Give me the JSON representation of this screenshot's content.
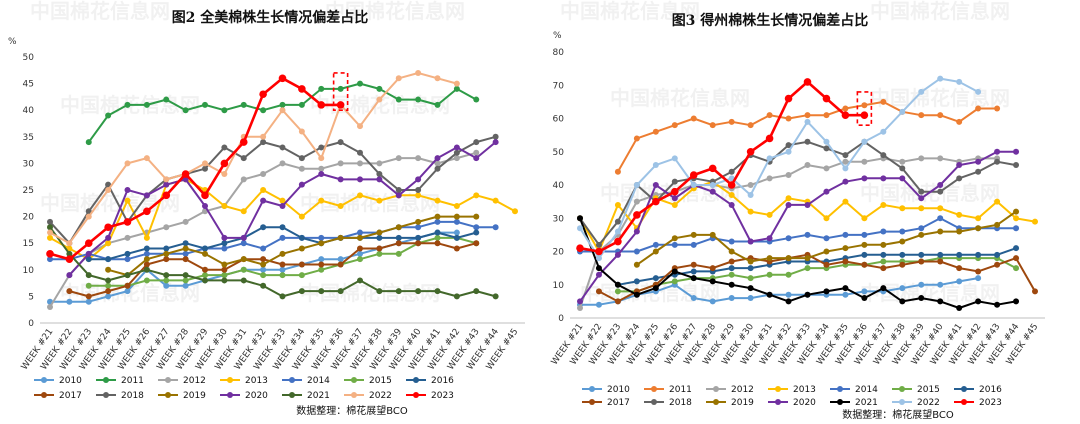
{
  "chart_data": [
    {
      "type": "line",
      "title": "图2 全美棉株生长情况偏差占比",
      "ylabel": "%",
      "ylim": [
        0,
        50
      ],
      "yticks": [
        0,
        5,
        10,
        15,
        20,
        25,
        30,
        35,
        40,
        45,
        50
      ],
      "categories": [
        "WEEK #21",
        "WEEK #22",
        "WEEK #23",
        "WEEK #24",
        "WEEK #25",
        "WEEK #26",
        "WEEK #27",
        "WEEK #28",
        "WEEK #29",
        "WEEK #30",
        "WEEK #31",
        "WEEK #32",
        "WEEK #33",
        "WEEK #34",
        "WEEK #35",
        "WEEK #36",
        "WEEK #37",
        "WEEK #38",
        "WEEK #39",
        "WEEK #40",
        "WEEK #41",
        "WEEK #42",
        "WEEK #43",
        "WEEK #44",
        "WEEK #45"
      ],
      "highlight": {
        "week": "WEEK #36",
        "range": [
          40,
          47
        ]
      },
      "source": "数据整理：棉花展望BCO",
      "grid": false,
      "legend_position": "bottom",
      "series": [
        {
          "name": "2010",
          "color": "#5b9bd5",
          "values": [
            4,
            4,
            4,
            5,
            6,
            10,
            7,
            7,
            8,
            9,
            10,
            10,
            10,
            11,
            12,
            12,
            13,
            14,
            15,
            16,
            17,
            17,
            null,
            null,
            null
          ]
        },
        {
          "name": "2011",
          "color": "#2e9b47",
          "values": [
            null,
            null,
            34,
            39,
            41,
            41,
            42,
            40,
            41,
            40,
            41,
            40,
            41,
            41,
            44,
            44,
            45,
            44,
            42,
            42,
            41,
            44,
            42,
            null,
            null
          ]
        },
        {
          "name": "2012",
          "color": "#a5a5a5",
          "values": [
            3,
            9,
            13,
            15,
            16,
            17,
            18,
            19,
            21,
            22,
            27,
            28,
            30,
            29,
            29,
            30,
            30,
            30,
            31,
            31,
            30,
            31,
            32,
            null,
            null
          ]
        },
        {
          "name": "2013",
          "color": "#ffc000",
          "values": [
            16,
            14,
            12,
            15,
            23,
            16,
            26,
            27,
            25,
            22,
            21,
            25,
            23,
            20,
            23,
            22,
            24,
            23,
            24,
            24,
            23,
            22,
            24,
            23,
            21
          ]
        },
        {
          "name": "2014",
          "color": "#4472c4",
          "values": [
            12,
            12,
            13,
            12,
            12,
            13,
            13,
            13,
            14,
            14,
            15,
            14,
            16,
            16,
            16,
            16,
            17,
            17,
            18,
            18,
            19,
            19,
            18,
            18,
            null
          ]
        },
        {
          "name": "2015",
          "color": "#70ad47",
          "values": [
            null,
            null,
            7,
            7,
            7,
            8,
            8,
            8,
            9,
            9,
            10,
            9,
            9,
            9,
            10,
            11,
            12,
            13,
            13,
            15,
            16,
            16,
            15,
            null,
            null
          ]
        },
        {
          "name": "2016",
          "color": "#255e91",
          "values": [
            null,
            null,
            12,
            12,
            13,
            14,
            14,
            15,
            14,
            15,
            16,
            18,
            18,
            16,
            15,
            16,
            16,
            16,
            16,
            16,
            17,
            16,
            17,
            null,
            null
          ]
        },
        {
          "name": "2017",
          "color": "#9e480e",
          "values": [
            null,
            6,
            5,
            6,
            7,
            11,
            12,
            12,
            10,
            10,
            12,
            12,
            11,
            11,
            11,
            11,
            14,
            14,
            15,
            15,
            15,
            14,
            15,
            null,
            null
          ]
        },
        {
          "name": "2018",
          "color": "#636363",
          "values": [
            19,
            15,
            21,
            26,
            19,
            24,
            27,
            28,
            29,
            33,
            31,
            34,
            33,
            31,
            33,
            34,
            32,
            28,
            25,
            25,
            29,
            32,
            34,
            35,
            null
          ]
        },
        {
          "name": "2019",
          "color": "#997300",
          "values": [
            null,
            null,
            null,
            10,
            9,
            12,
            13,
            14,
            13,
            11,
            12,
            11,
            13,
            14,
            15,
            16,
            16,
            17,
            18,
            19,
            20,
            20,
            20,
            null,
            null
          ]
        },
        {
          "name": "2020",
          "color": "#7030a0",
          "values": [
            null,
            9,
            13,
            16,
            25,
            24,
            26,
            27,
            22,
            16,
            16,
            23,
            22,
            26,
            28,
            27,
            27,
            27,
            24,
            27,
            31,
            33,
            31,
            34,
            null
          ]
        },
        {
          "name": "2021",
          "color": "#43682b",
          "values": [
            18,
            13,
            9,
            8,
            9,
            10,
            9,
            9,
            8,
            8,
            8,
            7,
            5,
            6,
            6,
            6,
            8,
            6,
            6,
            6,
            6,
            5,
            6,
            5,
            null
          ]
        },
        {
          "name": "2022",
          "color": "#f4b183",
          "values": [
            17,
            15,
            20,
            25,
            30,
            31,
            27,
            28,
            30,
            28,
            35,
            35,
            40,
            36,
            31,
            41,
            37,
            42,
            46,
            47,
            46,
            45,
            null,
            null,
            null
          ]
        },
        {
          "name": "2023",
          "color": "#ff0000",
          "values": [
            13,
            12,
            15,
            18,
            19,
            21,
            24,
            28,
            24,
            30,
            34,
            43,
            46,
            44,
            41,
            41,
            null,
            null,
            null,
            null,
            null,
            null,
            null,
            null,
            null
          ]
        }
      ]
    },
    {
      "type": "line",
      "title": "图3 得州棉株生长情况偏差占比",
      "ylabel": "%",
      "ylim": [
        0,
        80
      ],
      "yticks": [
        0,
        10,
        20,
        30,
        40,
        50,
        60,
        70,
        80
      ],
      "categories": [
        "WEEK #21",
        "WEEK #22",
        "WEEK #23",
        "WEEK #24",
        "WEEK #25",
        "WEEK #26",
        "WEEK #27",
        "WEEK #28",
        "WEEK #29",
        "WEEK #30",
        "WEEK #31",
        "WEEK #32",
        "WEEK #33",
        "WEEK #34",
        "WEEK #35",
        "WEEK #36",
        "WEEK #37",
        "WEEK #38",
        "WEEK #39",
        "WEEK #40",
        "WEEK #41",
        "WEEK #42",
        "WEEK #43",
        "WEEK #44",
        "WEEK #45"
      ],
      "highlight": {
        "week": "WEEK #36",
        "range": [
          58,
          68
        ]
      },
      "source": "数据整理：棉花展望BCO",
      "grid": false,
      "legend_position": "bottom",
      "series": [
        {
          "name": "2010",
          "color": "#5b9bd5",
          "values": [
            4,
            4,
            5,
            7,
            8,
            10,
            6,
            5,
            6,
            6,
            7,
            7,
            7,
            7,
            7,
            8,
            8,
            9,
            10,
            10,
            11,
            12,
            null,
            null,
            null
          ]
        },
        {
          "name": "2011",
          "color": "#ed7d31",
          "values": [
            null,
            null,
            44,
            54,
            56,
            58,
            60,
            58,
            59,
            58,
            61,
            60,
            61,
            61,
            63,
            64,
            65,
            62,
            61,
            61,
            59,
            63,
            63,
            null,
            null
          ]
        },
        {
          "name": "2012",
          "color": "#a5a5a5",
          "values": [
            3,
            20,
            25,
            35,
            37,
            38,
            40,
            40,
            39,
            40,
            42,
            43,
            46,
            45,
            47,
            47,
            48,
            47,
            48,
            48,
            47,
            48,
            48,
            null,
            null
          ]
        },
        {
          "name": "2013",
          "color": "#ffc000",
          "values": [
            30,
            20,
            34,
            27,
            36,
            34,
            39,
            41,
            37,
            32,
            31,
            36,
            35,
            30,
            35,
            30,
            34,
            33,
            33,
            33,
            31,
            30,
            35,
            30,
            29
          ]
        },
        {
          "name": "2014",
          "color": "#4472c4",
          "values": [
            20,
            20,
            20,
            20,
            22,
            22,
            22,
            24,
            23,
            23,
            23,
            24,
            25,
            24,
            25,
            25,
            26,
            26,
            27,
            30,
            27,
            27,
            27,
            27,
            null
          ]
        },
        {
          "name": "2015",
          "color": "#70ad47",
          "values": [
            null,
            null,
            8,
            8,
            10,
            11,
            12,
            12,
            13,
            12,
            13,
            13,
            15,
            15,
            16,
            16,
            17,
            17,
            17,
            18,
            18,
            18,
            18,
            15,
            null
          ]
        },
        {
          "name": "2016",
          "color": "#255e91",
          "values": [
            null,
            null,
            10,
            11,
            12,
            13,
            14,
            14,
            15,
            15,
            16,
            17,
            17,
            17,
            18,
            19,
            19,
            19,
            19,
            19,
            19,
            19,
            19,
            21,
            null
          ]
        },
        {
          "name": "2017",
          "color": "#9e480e",
          "values": [
            null,
            8,
            5,
            8,
            10,
            15,
            16,
            15,
            17,
            18,
            17,
            18,
            19,
            16,
            17,
            16,
            15,
            16,
            17,
            17,
            15,
            14,
            16,
            18,
            8
          ]
        },
        {
          "name": "2018",
          "color": "#636363",
          "values": [
            30,
            22,
            29,
            40,
            35,
            41,
            42,
            41,
            44,
            49,
            47,
            52,
            53,
            51,
            49,
            53,
            49,
            45,
            38,
            38,
            42,
            44,
            47,
            46,
            null
          ]
        },
        {
          "name": "2019",
          "color": "#997300",
          "values": [
            null,
            null,
            null,
            16,
            20,
            24,
            25,
            25,
            20,
            17,
            18,
            18,
            18,
            20,
            21,
            22,
            22,
            23,
            25,
            26,
            26,
            27,
            28,
            32,
            null
          ]
        },
        {
          "name": "2020",
          "color": "#7030a0",
          "values": [
            5,
            13,
            19,
            26,
            40,
            36,
            40,
            38,
            34,
            23,
            24,
            34,
            34,
            38,
            41,
            42,
            42,
            42,
            36,
            40,
            46,
            47,
            50,
            50,
            null
          ]
        },
        {
          "name": "2021",
          "color": "#000000",
          "values": [
            30,
            15,
            10,
            7,
            9,
            14,
            12,
            11,
            10,
            9,
            7,
            5,
            7,
            8,
            9,
            6,
            9,
            5,
            6,
            5,
            3,
            5,
            4,
            5,
            null
          ]
        },
        {
          "name": "2022",
          "color": "#9dc3e6",
          "values": [
            27,
            18,
            26,
            40,
            46,
            48,
            40,
            40,
            42,
            37,
            48,
            50,
            59,
            53,
            45,
            53,
            56,
            62,
            68,
            72,
            71,
            68,
            null,
            null,
            null
          ]
        },
        {
          "name": "2023",
          "color": "#ff0000",
          "values": [
            21,
            20,
            23,
            31,
            35,
            38,
            43,
            45,
            40,
            50,
            54,
            66,
            71,
            66,
            61,
            61,
            null,
            null,
            null,
            null,
            null,
            null,
            null,
            null,
            null
          ]
        }
      ]
    }
  ],
  "watermarks": [
    "中国棉花信息网",
    "www.cottonchina.org.cn"
  ]
}
